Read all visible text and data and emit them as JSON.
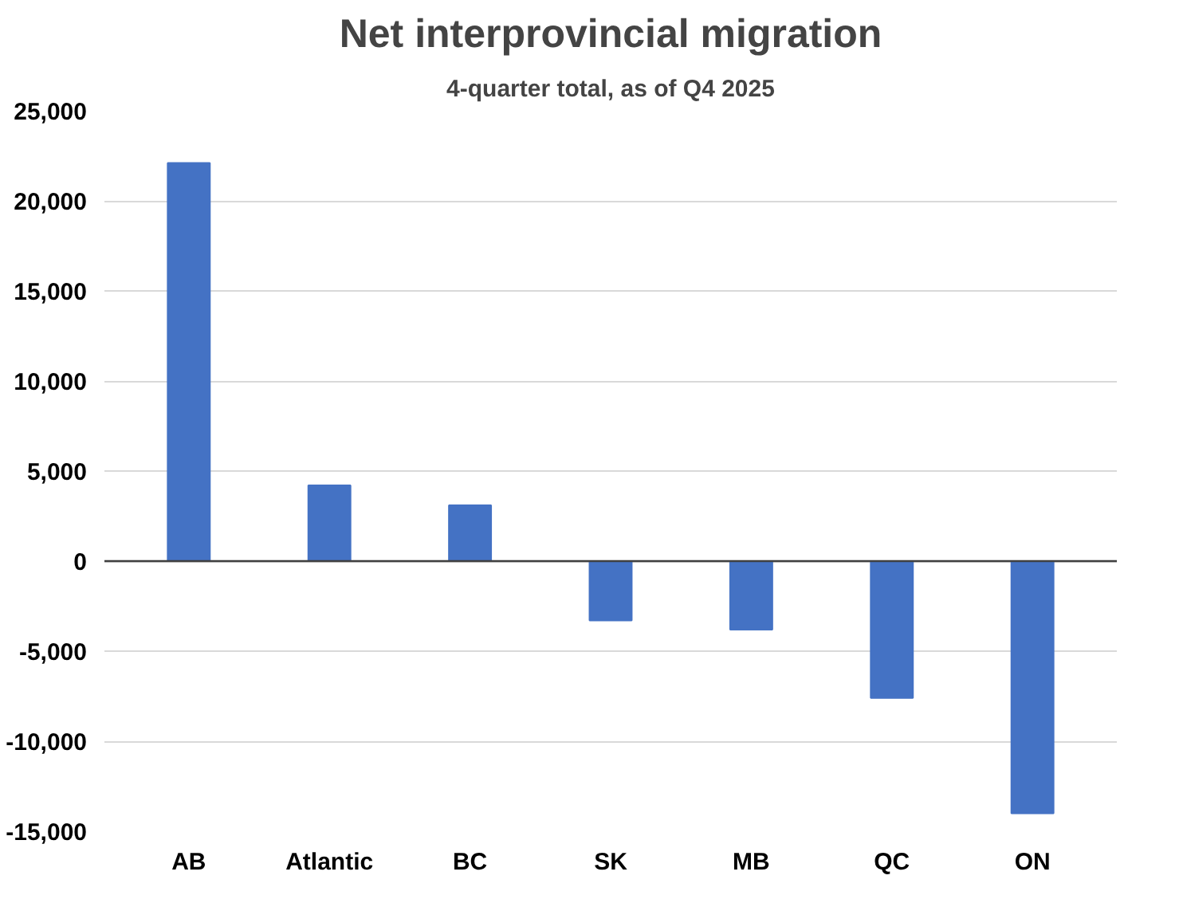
{
  "chart_data": {
    "type": "bar",
    "title": "Net interprovincial migration",
    "subtitle": "4-quarter total, as of Q4 2025",
    "categories": [
      "AB",
      "Atlantic",
      "BC",
      "SK",
      "MB",
      "QC",
      "ON"
    ],
    "values": [
      22100,
      4200,
      3100,
      -3300,
      -3800,
      -7600,
      -14000
    ],
    "color": "#4472c4",
    "ylim": [
      -15000,
      25000
    ],
    "yticks": [
      {
        "value": -15000,
        "label": "-15,000"
      },
      {
        "value": -10000,
        "label": "-10,000"
      },
      {
        "value": -5000,
        "label": "-5,000"
      },
      0,
      {
        "value": 5000,
        "label": "5,000"
      },
      {
        "value": 10000,
        "label": "10,000"
      },
      {
        "value": 15000,
        "label": "15,000"
      },
      {
        "value": 20000,
        "label": "20,000"
      },
      {
        "value": 25000,
        "label": "25,000"
      }
    ],
    "grid": "y"
  }
}
